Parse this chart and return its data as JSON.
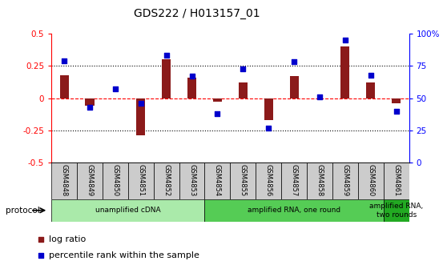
{
  "title": "GDS222 / H013157_01",
  "samples": [
    "GSM4848",
    "GSM4849",
    "GSM4850",
    "GSM4851",
    "GSM4852",
    "GSM4853",
    "GSM4854",
    "GSM4855",
    "GSM4856",
    "GSM4857",
    "GSM4858",
    "GSM4859",
    "GSM4860",
    "GSM4861"
  ],
  "log_ratio": [
    0.18,
    -0.06,
    0.0,
    -0.29,
    0.3,
    0.16,
    -0.03,
    0.12,
    -0.17,
    0.17,
    0.0,
    0.4,
    0.12,
    -0.04
  ],
  "percentile": [
    79,
    43,
    57,
    46,
    83,
    67,
    38,
    73,
    27,
    78,
    51,
    95,
    68,
    40
  ],
  "bar_color": "#8B1A1A",
  "dot_color": "#0000CC",
  "ylim_left": [
    -0.5,
    0.5
  ],
  "ylim_right": [
    0,
    100
  ],
  "yticks_left": [
    -0.5,
    -0.25,
    0.0,
    0.25,
    0.5
  ],
  "ytick_labels_left": [
    "-0.5",
    "-0.25",
    "0",
    "0.25",
    "0.5"
  ],
  "yticks_right": [
    0,
    25,
    50,
    75,
    100
  ],
  "ytick_labels_right": [
    "0",
    "25",
    "50",
    "75",
    "100%"
  ],
  "hlines_dotted": [
    -0.25,
    0.25
  ],
  "hline_zero_color": "red",
  "hline_zero_style": "--",
  "proto_defs": [
    {
      "start": 0,
      "end": 5,
      "color": "#AAEAAA",
      "label": "unamplified cDNA"
    },
    {
      "start": 6,
      "end": 12,
      "color": "#55CC55",
      "label": "amplified RNA, one round"
    },
    {
      "start": 13,
      "end": 13,
      "color": "#22AA22",
      "label": "amplified RNA,\ntwo rounds"
    }
  ],
  "legend_items": [
    {
      "color": "#8B1A1A",
      "label": "log ratio"
    },
    {
      "color": "#0000CC",
      "label": "percentile rank within the sample"
    }
  ],
  "bar_width": 0.35,
  "dot_size": 25,
  "label_cell_color": "#CCCCCC",
  "bg_color": "#FFFFFF"
}
